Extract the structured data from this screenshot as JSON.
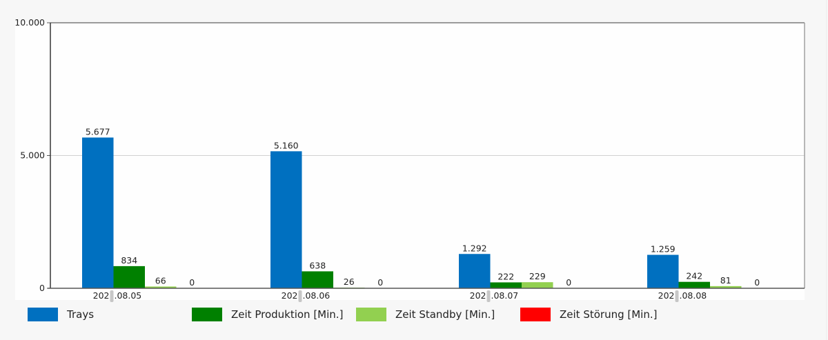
{
  "chart_data": {
    "type": "bar",
    "title": "",
    "xlabel": "",
    "ylabel": "",
    "ylim": [
      0,
      10000
    ],
    "yticks": [
      0,
      5000,
      10000
    ],
    "ytick_labels": [
      "0",
      "5.000",
      "10.000"
    ],
    "grid": "horizontal at 5.000",
    "legend_position": "bottom",
    "categories": [
      "202 .08.05",
      "202 .08.06",
      "202 .08.07",
      "202 .08.08"
    ],
    "category_parts": [
      {
        "pre": "202",
        "post": ".08.05"
      },
      {
        "pre": "202",
        "post": ".08.06"
      },
      {
        "pre": "202",
        "post": ".08.07"
      },
      {
        "pre": "202",
        "post": ".08.08"
      }
    ],
    "series": [
      {
        "name": "Trays",
        "color": "#0070c0",
        "values": [
          5677,
          5160,
          1292,
          1259
        ],
        "labels": [
          "5.677",
          "5.160",
          "1.292",
          "1.259"
        ]
      },
      {
        "name": "Zeit Produktion [Min.]",
        "color": "#008000",
        "values": [
          834,
          638,
          222,
          242
        ],
        "labels": [
          "834",
          "638",
          "222",
          "242"
        ]
      },
      {
        "name": "Zeit Standby [Min.]",
        "color": "#92d050",
        "values": [
          66,
          26,
          229,
          81
        ],
        "labels": [
          "66",
          "26",
          "229",
          "81"
        ]
      },
      {
        "name": "Zeit Störung [Min.]",
        "color": "#ff0000",
        "values": [
          0,
          0,
          0,
          0
        ],
        "labels": [
          "0",
          "0",
          "0",
          "0"
        ]
      }
    ]
  }
}
